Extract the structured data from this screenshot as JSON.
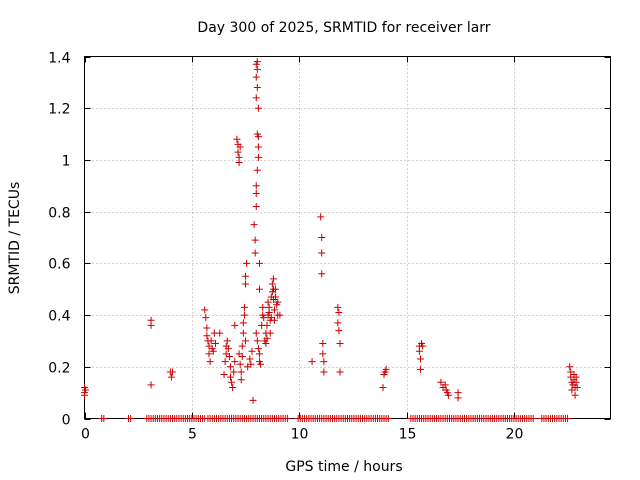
{
  "chart_data": {
    "type": "scatter",
    "title": "Day 300 of 2025, SRMTID for receiver larr",
    "xlabel": "GPS time / hours",
    "ylabel": "SRMTID / TECUs",
    "xlim": [
      0,
      24.5
    ],
    "ylim": [
      0,
      1.4
    ],
    "xticks": [
      0,
      5,
      10,
      15,
      20
    ],
    "xtick_labels": [
      "0",
      "5",
      "10",
      "15",
      "20"
    ],
    "yticks": [
      0,
      0.2,
      0.4,
      0.6,
      0.8,
      1.0,
      1.2,
      1.4
    ],
    "ytick_labels": [
      "0",
      "0.2",
      "0.4",
      "0.6",
      "0.8",
      "1",
      "1.2",
      "1.4"
    ],
    "grid": true,
    "marker": "+",
    "color": "#cc0000",
    "series": [
      {
        "name": "SRMTID",
        "points": [
          [
            0.0,
            0.1
          ],
          [
            0.0,
            0.12
          ],
          [
            0.0,
            0.09
          ],
          [
            0.05,
            0.11
          ],
          [
            3.1,
            0.38
          ],
          [
            3.1,
            0.36
          ],
          [
            3.1,
            0.13
          ],
          [
            4.0,
            0.18
          ],
          [
            4.05,
            0.16
          ],
          [
            4.1,
            0.18
          ],
          [
            5.6,
            0.42
          ],
          [
            5.65,
            0.39
          ],
          [
            5.7,
            0.35
          ],
          [
            5.7,
            0.32
          ],
          [
            5.75,
            0.3
          ],
          [
            5.8,
            0.28
          ],
          [
            5.8,
            0.25
          ],
          [
            5.85,
            0.22
          ],
          [
            5.9,
            0.3
          ],
          [
            5.95,
            0.27
          ],
          [
            6.0,
            0.26
          ],
          [
            6.05,
            0.33
          ],
          [
            6.1,
            0.29
          ],
          [
            6.3,
            0.33
          ],
          [
            6.5,
            0.17
          ],
          [
            6.55,
            0.22
          ],
          [
            6.6,
            0.25
          ],
          [
            6.6,
            0.28
          ],
          [
            6.65,
            0.3
          ],
          [
            6.7,
            0.27
          ],
          [
            6.75,
            0.24
          ],
          [
            6.8,
            0.2
          ],
          [
            6.8,
            0.16
          ],
          [
            6.85,
            0.14
          ],
          [
            6.9,
            0.12
          ],
          [
            6.95,
            0.18
          ],
          [
            7.0,
            0.22
          ],
          [
            7.0,
            0.36
          ],
          [
            7.1,
            1.08
          ],
          [
            7.15,
            1.06
          ],
          [
            7.15,
            1.03
          ],
          [
            7.2,
            1.01
          ],
          [
            7.2,
            0.99
          ],
          [
            7.25,
            1.05
          ],
          [
            7.2,
            0.25
          ],
          [
            7.25,
            0.21
          ],
          [
            7.3,
            0.18
          ],
          [
            7.3,
            0.15
          ],
          [
            7.35,
            0.28
          ],
          [
            7.4,
            0.33
          ],
          [
            7.4,
            0.37
          ],
          [
            7.45,
            0.43
          ],
          [
            7.45,
            0.4
          ],
          [
            7.5,
            0.55
          ],
          [
            7.5,
            0.52
          ],
          [
            7.55,
            0.6
          ],
          [
            7.35,
            0.24
          ],
          [
            7.5,
            0.3
          ],
          [
            7.6,
            0.2
          ],
          [
            7.7,
            0.23
          ],
          [
            7.75,
            0.21
          ],
          [
            7.8,
            0.26
          ],
          [
            7.85,
            0.07
          ],
          [
            7.9,
            0.75
          ],
          [
            7.95,
            0.69
          ],
          [
            7.95,
            0.64
          ],
          [
            8.0,
            0.82
          ],
          [
            8.0,
            0.87
          ],
          [
            8.0,
            0.9
          ],
          [
            8.05,
            0.96
          ],
          [
            8.05,
            1.1
          ],
          [
            8.1,
            1.09
          ],
          [
            8.1,
            1.2
          ],
          [
            8.0,
            1.24
          ],
          [
            8.05,
            1.28
          ],
          [
            8.0,
            1.32
          ],
          [
            8.05,
            1.35
          ],
          [
            8.0,
            1.37
          ],
          [
            8.05,
            1.38
          ],
          [
            8.1,
            1.05
          ],
          [
            8.1,
            1.01
          ],
          [
            8.15,
            0.6
          ],
          [
            8.15,
            0.5
          ],
          [
            8.0,
            0.33
          ],
          [
            8.05,
            0.3
          ],
          [
            8.1,
            0.27
          ],
          [
            8.15,
            0.25
          ],
          [
            8.15,
            0.22
          ],
          [
            8.2,
            0.21
          ],
          [
            8.25,
            0.36
          ],
          [
            8.3,
            0.4
          ],
          [
            8.3,
            0.43
          ],
          [
            8.35,
            0.39
          ],
          [
            8.4,
            0.3
          ],
          [
            8.45,
            0.33
          ],
          [
            8.5,
            0.36
          ],
          [
            8.55,
            0.4
          ],
          [
            8.55,
            0.45
          ],
          [
            8.6,
            0.43
          ],
          [
            8.65,
            0.38
          ],
          [
            8.65,
            0.33
          ],
          [
            8.7,
            0.47
          ],
          [
            8.75,
            0.49
          ],
          [
            8.75,
            0.52
          ],
          [
            8.8,
            0.54
          ],
          [
            8.8,
            0.46
          ],
          [
            8.85,
            0.42
          ],
          [
            8.85,
            0.38
          ],
          [
            8.9,
            0.5
          ],
          [
            8.9,
            0.47
          ],
          [
            8.95,
            0.44
          ],
          [
            9.0,
            0.45
          ],
          [
            9.0,
            0.4
          ],
          [
            9.1,
            0.4
          ],
          [
            8.45,
            0.29
          ],
          [
            8.5,
            0.31
          ],
          [
            8.6,
            0.41
          ],
          [
            8.7,
            0.39
          ],
          [
            8.8,
            0.5
          ],
          [
            10.6,
            0.22
          ],
          [
            11.0,
            0.78
          ],
          [
            11.05,
            0.7
          ],
          [
            11.05,
            0.64
          ],
          [
            11.05,
            0.56
          ],
          [
            11.1,
            0.29
          ],
          [
            11.1,
            0.25
          ],
          [
            11.15,
            0.22
          ],
          [
            11.15,
            0.18
          ],
          [
            11.8,
            0.43
          ],
          [
            11.85,
            0.41
          ],
          [
            11.8,
            0.37
          ],
          [
            11.85,
            0.34
          ],
          [
            11.9,
            0.29
          ],
          [
            11.9,
            0.18
          ],
          [
            13.9,
            0.12
          ],
          [
            13.95,
            0.17
          ],
          [
            14.0,
            0.18
          ],
          [
            14.05,
            0.19
          ],
          [
            15.6,
            0.28
          ],
          [
            15.6,
            0.26
          ],
          [
            15.65,
            0.23
          ],
          [
            15.7,
            0.29
          ],
          [
            15.75,
            0.28
          ],
          [
            15.65,
            0.19
          ],
          [
            16.6,
            0.14
          ],
          [
            16.7,
            0.12
          ],
          [
            16.8,
            0.13
          ],
          [
            16.85,
            0.11
          ],
          [
            16.9,
            0.1
          ],
          [
            16.95,
            0.09
          ],
          [
            17.4,
            0.1
          ],
          [
            17.4,
            0.08
          ],
          [
            22.6,
            0.2
          ],
          [
            22.65,
            0.18
          ],
          [
            22.65,
            0.16
          ],
          [
            22.7,
            0.14
          ],
          [
            22.75,
            0.13
          ],
          [
            22.7,
            0.11
          ],
          [
            22.8,
            0.17
          ],
          [
            22.8,
            0.15
          ],
          [
            22.85,
            0.12
          ],
          [
            22.85,
            0.09
          ],
          [
            22.9,
            0.16
          ],
          [
            22.9,
            0.14
          ],
          [
            22.95,
            0.12
          ]
        ],
        "zero_ranges": [
          [
            0.8,
            0.95
          ],
          [
            2.05,
            2.15
          ],
          [
            2.9,
            5.65
          ],
          [
            5.75,
            9.45
          ],
          [
            9.95,
            14.15
          ],
          [
            15.2,
            20.9
          ],
          [
            21.3,
            22.5
          ]
        ]
      }
    ]
  }
}
